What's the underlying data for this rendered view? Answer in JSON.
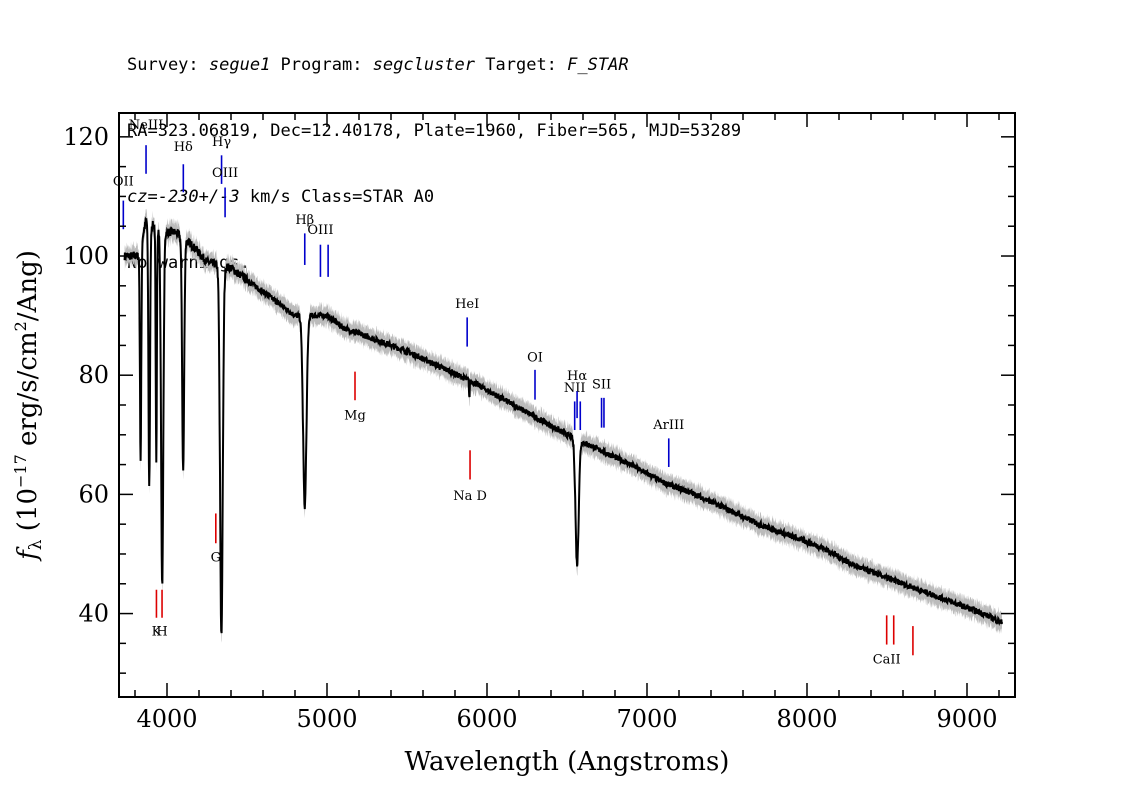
{
  "header": {
    "survey_prefix": "Survey: ",
    "survey": "segue1",
    "program_prefix": " Program: ",
    "program": "segcluster",
    "target_prefix": " Target: ",
    "target": "F_STAR",
    "line2": "RA=323.06819, Dec=12.40178, Plate=1960, Fiber=565, MJD=53289",
    "cz_value": "cz=-230+/-3",
    "cz_suffix": " km/s Class=STAR A0",
    "line4": "No warnings."
  },
  "chart_data": {
    "type": "line",
    "xlabel": "Wavelength (Angstroms)",
    "ylabel": "f_λ (10^-17 erg/s/cm^2/Ang)",
    "ylabel_parts": {
      "f": "f",
      "sub": "λ",
      "open": " (10",
      "exp1": "−17",
      "mid": " erg/s/cm",
      "exp2": "2",
      "close": "/Ang)"
    },
    "xlim": [
      3700,
      9300
    ],
    "ylim": [
      26,
      124
    ],
    "x_ticks": [
      4000,
      5000,
      6000,
      7000,
      8000,
      9000
    ],
    "y_ticks": [
      40,
      60,
      80,
      100,
      120
    ],
    "grid": false,
    "colors": {
      "spectrum": "#000000",
      "error": "#bbbbbb",
      "emission": "#0000cc",
      "absorption": "#dd0000"
    },
    "continuum": [
      [
        3735,
        100
      ],
      [
        3820,
        100
      ],
      [
        3870,
        106
      ],
      [
        3920,
        105
      ],
      [
        3980,
        104
      ],
      [
        4050,
        104
      ],
      [
        4150,
        102
      ],
      [
        4250,
        99
      ],
      [
        4400,
        98
      ],
      [
        4500,
        96
      ],
      [
        4600,
        94
      ],
      [
        4700,
        92
      ],
      [
        4800,
        90
      ],
      [
        4900,
        90
      ],
      [
        5000,
        90
      ],
      [
        5100,
        88
      ],
      [
        5200,
        87
      ],
      [
        5300,
        86
      ],
      [
        5500,
        84
      ],
      [
        5700,
        81.5
      ],
      [
        5900,
        79
      ],
      [
        6100,
        76
      ],
      [
        6300,
        73
      ],
      [
        6500,
        70
      ],
      [
        6700,
        67.5
      ],
      [
        6900,
        65
      ],
      [
        7100,
        62
      ],
      [
        7300,
        60
      ],
      [
        7500,
        57.5
      ],
      [
        7700,
        55
      ],
      [
        7900,
        53
      ],
      [
        8100,
        51
      ],
      [
        8300,
        48
      ],
      [
        8500,
        46
      ],
      [
        8700,
        44
      ],
      [
        8900,
        42
      ],
      [
        9100,
        40
      ],
      [
        9220,
        38.5
      ]
    ],
    "absorption_features": [
      {
        "center": 3835,
        "depth": 36,
        "width": 6
      },
      {
        "center": 3889,
        "depth": 44,
        "width": 7
      },
      {
        "center": 3933,
        "depth": 40,
        "width": 5
      },
      {
        "center": 3970,
        "depth": 59,
        "width": 10
      },
      {
        "center": 4101,
        "depth": 39,
        "width": 9
      },
      {
        "center": 4340,
        "depth": 62,
        "width": 12
      },
      {
        "center": 4861,
        "depth": 32,
        "width": 15
      },
      {
        "center": 5890,
        "depth": 3,
        "width": 3
      },
      {
        "center": 6563,
        "depth": 21,
        "width": 14
      }
    ],
    "emission_lines": [
      {
        "label": "OII",
        "x": 3727,
        "y1": 104.5,
        "y2": 109.3,
        "label_y": 111.8
      },
      {
        "label": "NeIII",
        "x": 3869,
        "y1": 113.8,
        "y2": 118.6,
        "label_y": 121.3
      },
      {
        "label": "Hδ",
        "x": 4102,
        "y1": 110.7,
        "y2": 115.4,
        "label_y": 117.6
      },
      {
        "label": "Hγ",
        "x": 4341,
        "y1": 112.1,
        "y2": 116.9,
        "label_y": 118.5
      },
      {
        "label": "OIII",
        "x": 4363,
        "y1": 106.5,
        "y2": 111.5,
        "label_y": 113.3
      },
      {
        "label": "Hβ",
        "x": 4861,
        "y1": 98.5,
        "y2": 103.8,
        "label_y": 105.4
      },
      {
        "label": "OIII",
        "x": 4959,
        "y1": 96.5,
        "y2": 101.9,
        "label_y": 103.7
      },
      {
        "label": "OIII",
        "x": 5007,
        "y1": 96.5,
        "y2": 101.9,
        "label_y": null
      },
      {
        "label": "HeI",
        "x": 5876,
        "y1": 84.8,
        "y2": 89.7,
        "label_y": 91.3
      },
      {
        "label": "OI",
        "x": 6300,
        "y1": 75.9,
        "y2": 80.9,
        "label_y": 82.3
      },
      {
        "label": "NII",
        "x": 6548,
        "y1": 70.8,
        "y2": 75.6,
        "label_y": 77.2
      },
      {
        "label": "Hα",
        "x": 6563,
        "y1": 72.8,
        "y2": 77.3,
        "label_y": 79.2
      },
      {
        "label": "NII",
        "x": 6583,
        "y1": 70.8,
        "y2": 75.6,
        "label_y": null
      },
      {
        "label": "SII",
        "x": 6716,
        "y1": 71.2,
        "y2": 76.2,
        "label_y": 77.8
      },
      {
        "label": "SII",
        "x": 6731,
        "y1": 71.2,
        "y2": 76.2,
        "label_y": null
      },
      {
        "label": "ArIII",
        "x": 7136,
        "y1": 64.6,
        "y2": 69.4,
        "label_y": 71.0
      }
    ],
    "absorption_lines": [
      {
        "label": "K",
        "x": 3934,
        "y1": 39.3,
        "y2": 44.0,
        "label_y": 36.3
      },
      {
        "label": "H",
        "x": 3969,
        "y1": 39.3,
        "y2": 44.0,
        "label_y": 36.3
      },
      {
        "label": "G",
        "x": 4305,
        "y1": 51.8,
        "y2": 56.8,
        "label_y": 48.7
      },
      {
        "label": "Mg",
        "x": 5175,
        "y1": 75.8,
        "y2": 80.6,
        "label_y": 72.6
      },
      {
        "label": "Na D",
        "x": 5894,
        "y1": 62.5,
        "y2": 67.4,
        "label_y": 59.1
      },
      {
        "label": "CaII",
        "x": 8498,
        "y1": 34.8,
        "y2": 39.7,
        "label_y": 31.6
      },
      {
        "label": "CaII",
        "x": 8542,
        "y1": 34.8,
        "y2": 39.7,
        "label_y": null
      },
      {
        "label": "CaII",
        "x": 8662,
        "y1": 33.0,
        "y2": 37.9,
        "label_y": null
      }
    ]
  }
}
